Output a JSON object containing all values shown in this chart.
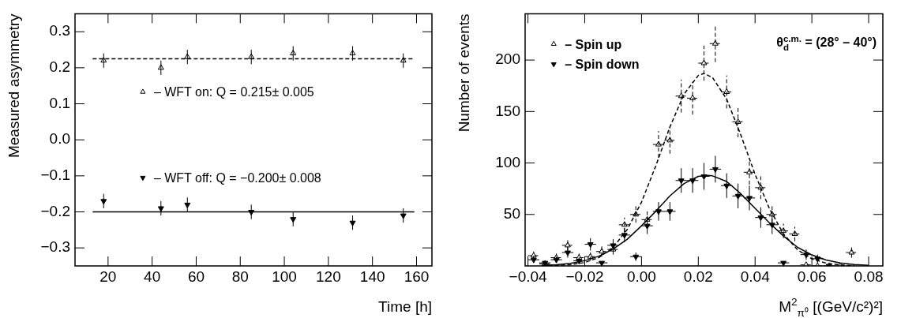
{
  "chart_data": [
    {
      "type": "scatter",
      "xlabel": "Time [h]",
      "ylabel": "Measured asymmetry",
      "xlim": [
        5,
        167
      ],
      "xticks": [
        20,
        40,
        60,
        80,
        100,
        120,
        140,
        160
      ],
      "ylim": [
        -0.35,
        0.35
      ],
      "yticks": [
        {
          "value": -0.3,
          "label": "−0.3"
        },
        {
          "value": -0.2,
          "label": "−0.2"
        },
        {
          "value": -0.1,
          "label": "−0.1"
        },
        {
          "value": 0,
          "label": "0.0"
        },
        0.1,
        0.2,
        0.3
      ],
      "legend": "center",
      "series": [
        {
          "name": "– WFT on: Q = 0.215± 0.005",
          "color": "#000000",
          "marker": "triangle",
          "x": [
            18,
            44,
            56,
            85,
            104,
            131,
            154
          ],
          "values": [
            0.22,
            0.2,
            0.23,
            0.23,
            0.24,
            0.24,
            0.22
          ],
          "errors": [
            0.02,
            0.02,
            0.02,
            0.02,
            0.02,
            0.02,
            0.02
          ]
        },
        {
          "name": "– WFT off: Q = −0.200± 0.008",
          "color": "#000000",
          "marker": "triangle-down",
          "x": [
            18,
            44,
            56,
            85,
            104,
            131,
            154
          ],
          "values": [
            -0.17,
            -0.19,
            -0.18,
            -0.2,
            -0.22,
            -0.23,
            -0.21
          ],
          "errors": [
            0.02,
            0.02,
            0.02,
            0.02,
            0.02,
            0.02,
            0.02
          ]
        },
        {
          "type": "line",
          "color": "#000000",
          "marker": "none",
          "line_style": "dashed",
          "x": [
            13,
            159
          ],
          "values": [
            0.225,
            0.225
          ]
        },
        {
          "type": "line",
          "color": "#000000",
          "marker": "none",
          "line_style": "solid",
          "x": [
            13,
            159
          ],
          "values": [
            -0.2,
            -0.2
          ]
        }
      ]
    },
    {
      "type": "scatter",
      "xlabel": "M$^{2}$$_{π⁰}$ [(GeV/c²)²]",
      "ylabel": "Number of events",
      "xlim": [
        -0.041,
        0.085
      ],
      "xticks": [
        {
          "value": -0.04,
          "label": "−0.04"
        },
        {
          "value": -0.02,
          "label": "−0.02"
        },
        {
          "value": 0,
          "label": "0.00"
        },
        {
          "value": 0.02,
          "label": "0.02"
        },
        {
          "value": 0.04,
          "label": "0.04"
        },
        {
          "value": 0.06,
          "label": "0.06"
        },
        {
          "value": 0.08,
          "label": "0.08"
        }
      ],
      "ylim": [
        0,
        245
      ],
      "yticks": [
        50,
        100,
        150,
        200
      ],
      "legend": "top left",
      "annotations": [
        "θ$_{d}$$^{c.m.}$ = (28° – 40°)"
      ],
      "series": [
        {
          "name": "– Spin up",
          "color": "#000000",
          "marker": "triangle",
          "line_style": "dashed",
          "x": [
            -0.038,
            -0.034,
            -0.03,
            -0.026,
            -0.022,
            -0.018,
            -0.014,
            -0.01,
            -0.006,
            -0.002,
            0.002,
            0.006,
            0.01,
            0.014,
            0.018,
            0.022,
            0.026,
            0.03,
            0.034,
            0.038,
            0.042,
            0.046,
            0.05,
            0.054,
            0.058,
            0.062,
            0.07,
            0.074
          ],
          "values": [
            10,
            2,
            8,
            20,
            8,
            9,
            14,
            16,
            40,
            50,
            45,
            118,
            122,
            165,
            163,
            197,
            216,
            169,
            140,
            91,
            76,
            50,
            34,
            31,
            1,
            0,
            0,
            13
          ],
          "errors": [
            4,
            2,
            4,
            5,
            4,
            4,
            5,
            5,
            7,
            8,
            8,
            13,
            13,
            16,
            16,
            17,
            18,
            16,
            15,
            12,
            11,
            8,
            7,
            7,
            null,
            null,
            null,
            5
          ],
          "xerrors": [
            0.002,
            0.002,
            0.002,
            0.002,
            0.002,
            0.002,
            0.002,
            0.002,
            0.002,
            0.002,
            0.002,
            0.002,
            0.002,
            0.002,
            0.002,
            0.002,
            0.002,
            0.002,
            0.002,
            0.002,
            0.002,
            0.002,
            0.002,
            0.002,
            0.002,
            0.002,
            0.002,
            0.002
          ]
        },
        {
          "name": "– Spin down",
          "color": "#000000",
          "marker": "triangle-down",
          "line_style": "solid",
          "x": [
            -0.038,
            -0.034,
            -0.03,
            -0.026,
            -0.022,
            -0.018,
            -0.014,
            -0.01,
            -0.006,
            -0.002,
            0.002,
            0.006,
            0.01,
            0.014,
            0.018,
            0.022,
            0.026,
            0.03,
            0.034,
            0.038,
            0.042,
            0.046,
            0.05,
            0.058,
            0.062,
            0.066
          ],
          "values": [
            6,
            3,
            6,
            13,
            5,
            21,
            3,
            20,
            30,
            9,
            39,
            53,
            53,
            83,
            83,
            87,
            94,
            78,
            68,
            66,
            47,
            40,
            3,
            11,
            7,
            0
          ],
          "errors": [
            3,
            2,
            3,
            5,
            3,
            6,
            null,
            6,
            7,
            4,
            8,
            9,
            9,
            12,
            12,
            13,
            13,
            12,
            12,
            12,
            10,
            9,
            null,
            5,
            4,
            null
          ],
          "xerrors": [
            0.002,
            0.002,
            0.002,
            0.002,
            0.002,
            0.002,
            0.002,
            0.002,
            0.002,
            0.002,
            0.002,
            0.002,
            0.002,
            0.002,
            0.002,
            0.002,
            0.002,
            0.002,
            0.002,
            0.002,
            0.002,
            0.002,
            0.002,
            0.002,
            0.002,
            0.002
          ]
        },
        {
          "type": "line",
          "color": "#000000",
          "marker": "none",
          "line_style": "dashed",
          "x": [
            -0.035,
            -0.03,
            -0.025,
            -0.02,
            -0.015,
            -0.01,
            -0.005,
            0,
            0.005,
            0.01,
            0.015,
            0.02,
            0.022,
            0.025,
            0.03,
            0.035,
            0.04,
            0.045,
            0.05,
            0.055,
            0.06,
            0.065,
            0.07,
            0.075
          ],
          "values": [
            0.1,
            0.4,
            1.2,
            3.3,
            8.2,
            18,
            35.5,
            62,
            97,
            135,
            167,
            185,
            187,
            183,
            162,
            127,
            89,
            56,
            31,
            15.5,
            6.9,
            2.7,
            1.0,
            0.3
          ]
        },
        {
          "type": "line",
          "color": "#000000",
          "marker": "none",
          "line_style": "solid",
          "x": [
            -0.035,
            -0.03,
            -0.025,
            -0.02,
            -0.015,
            -0.01,
            -0.005,
            0,
            0.005,
            0.01,
            0.015,
            0.02,
            0.023,
            0.025,
            0.03,
            0.035,
            0.04,
            0.045,
            0.05,
            0.055,
            0.06,
            0.065,
            0.07,
            0.075,
            0.08
          ],
          "values": [
            0.5,
            1.2,
            2.5,
            5.1,
            9.5,
            16.4,
            26,
            39,
            53,
            68,
            80,
            87,
            88,
            87.5,
            82,
            70,
            56,
            42,
            29,
            18,
            10.7,
            5.8,
            2.9,
            1.4,
            0.6
          ]
        }
      ]
    }
  ]
}
